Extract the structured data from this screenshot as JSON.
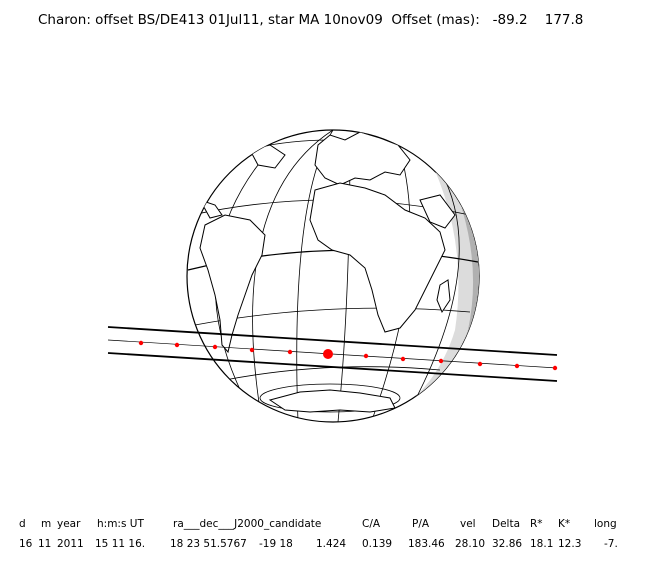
{
  "title": {
    "prefix": "Charon: offset BS/DE413 01Jul11, star MA 10nov09  Offset (mas):",
    "offset_ra": "-89.2",
    "offset_dec": "177.8"
  },
  "colors": {
    "path_dots": "#ff0000",
    "night_shade": "#b0b0b0",
    "twilight_shade": "#dcdcdc",
    "lines": "#000000"
  },
  "table": {
    "headers": [
      "d",
      "m",
      "year",
      "h:m:s UT",
      "ra___dec___J2000_candidate",
      "C/A",
      "P/A",
      "vel",
      "Delta",
      "R*",
      "K*",
      "long"
    ],
    "values": [
      "16",
      "11",
      "2011",
      "15 11 16.",
      "18 23 51.5767",
      "-19 18",
      "1.424",
      "0.139",
      "183.46",
      "28.10",
      "32.86",
      "18.1",
      "12.3",
      "-7."
    ]
  }
}
